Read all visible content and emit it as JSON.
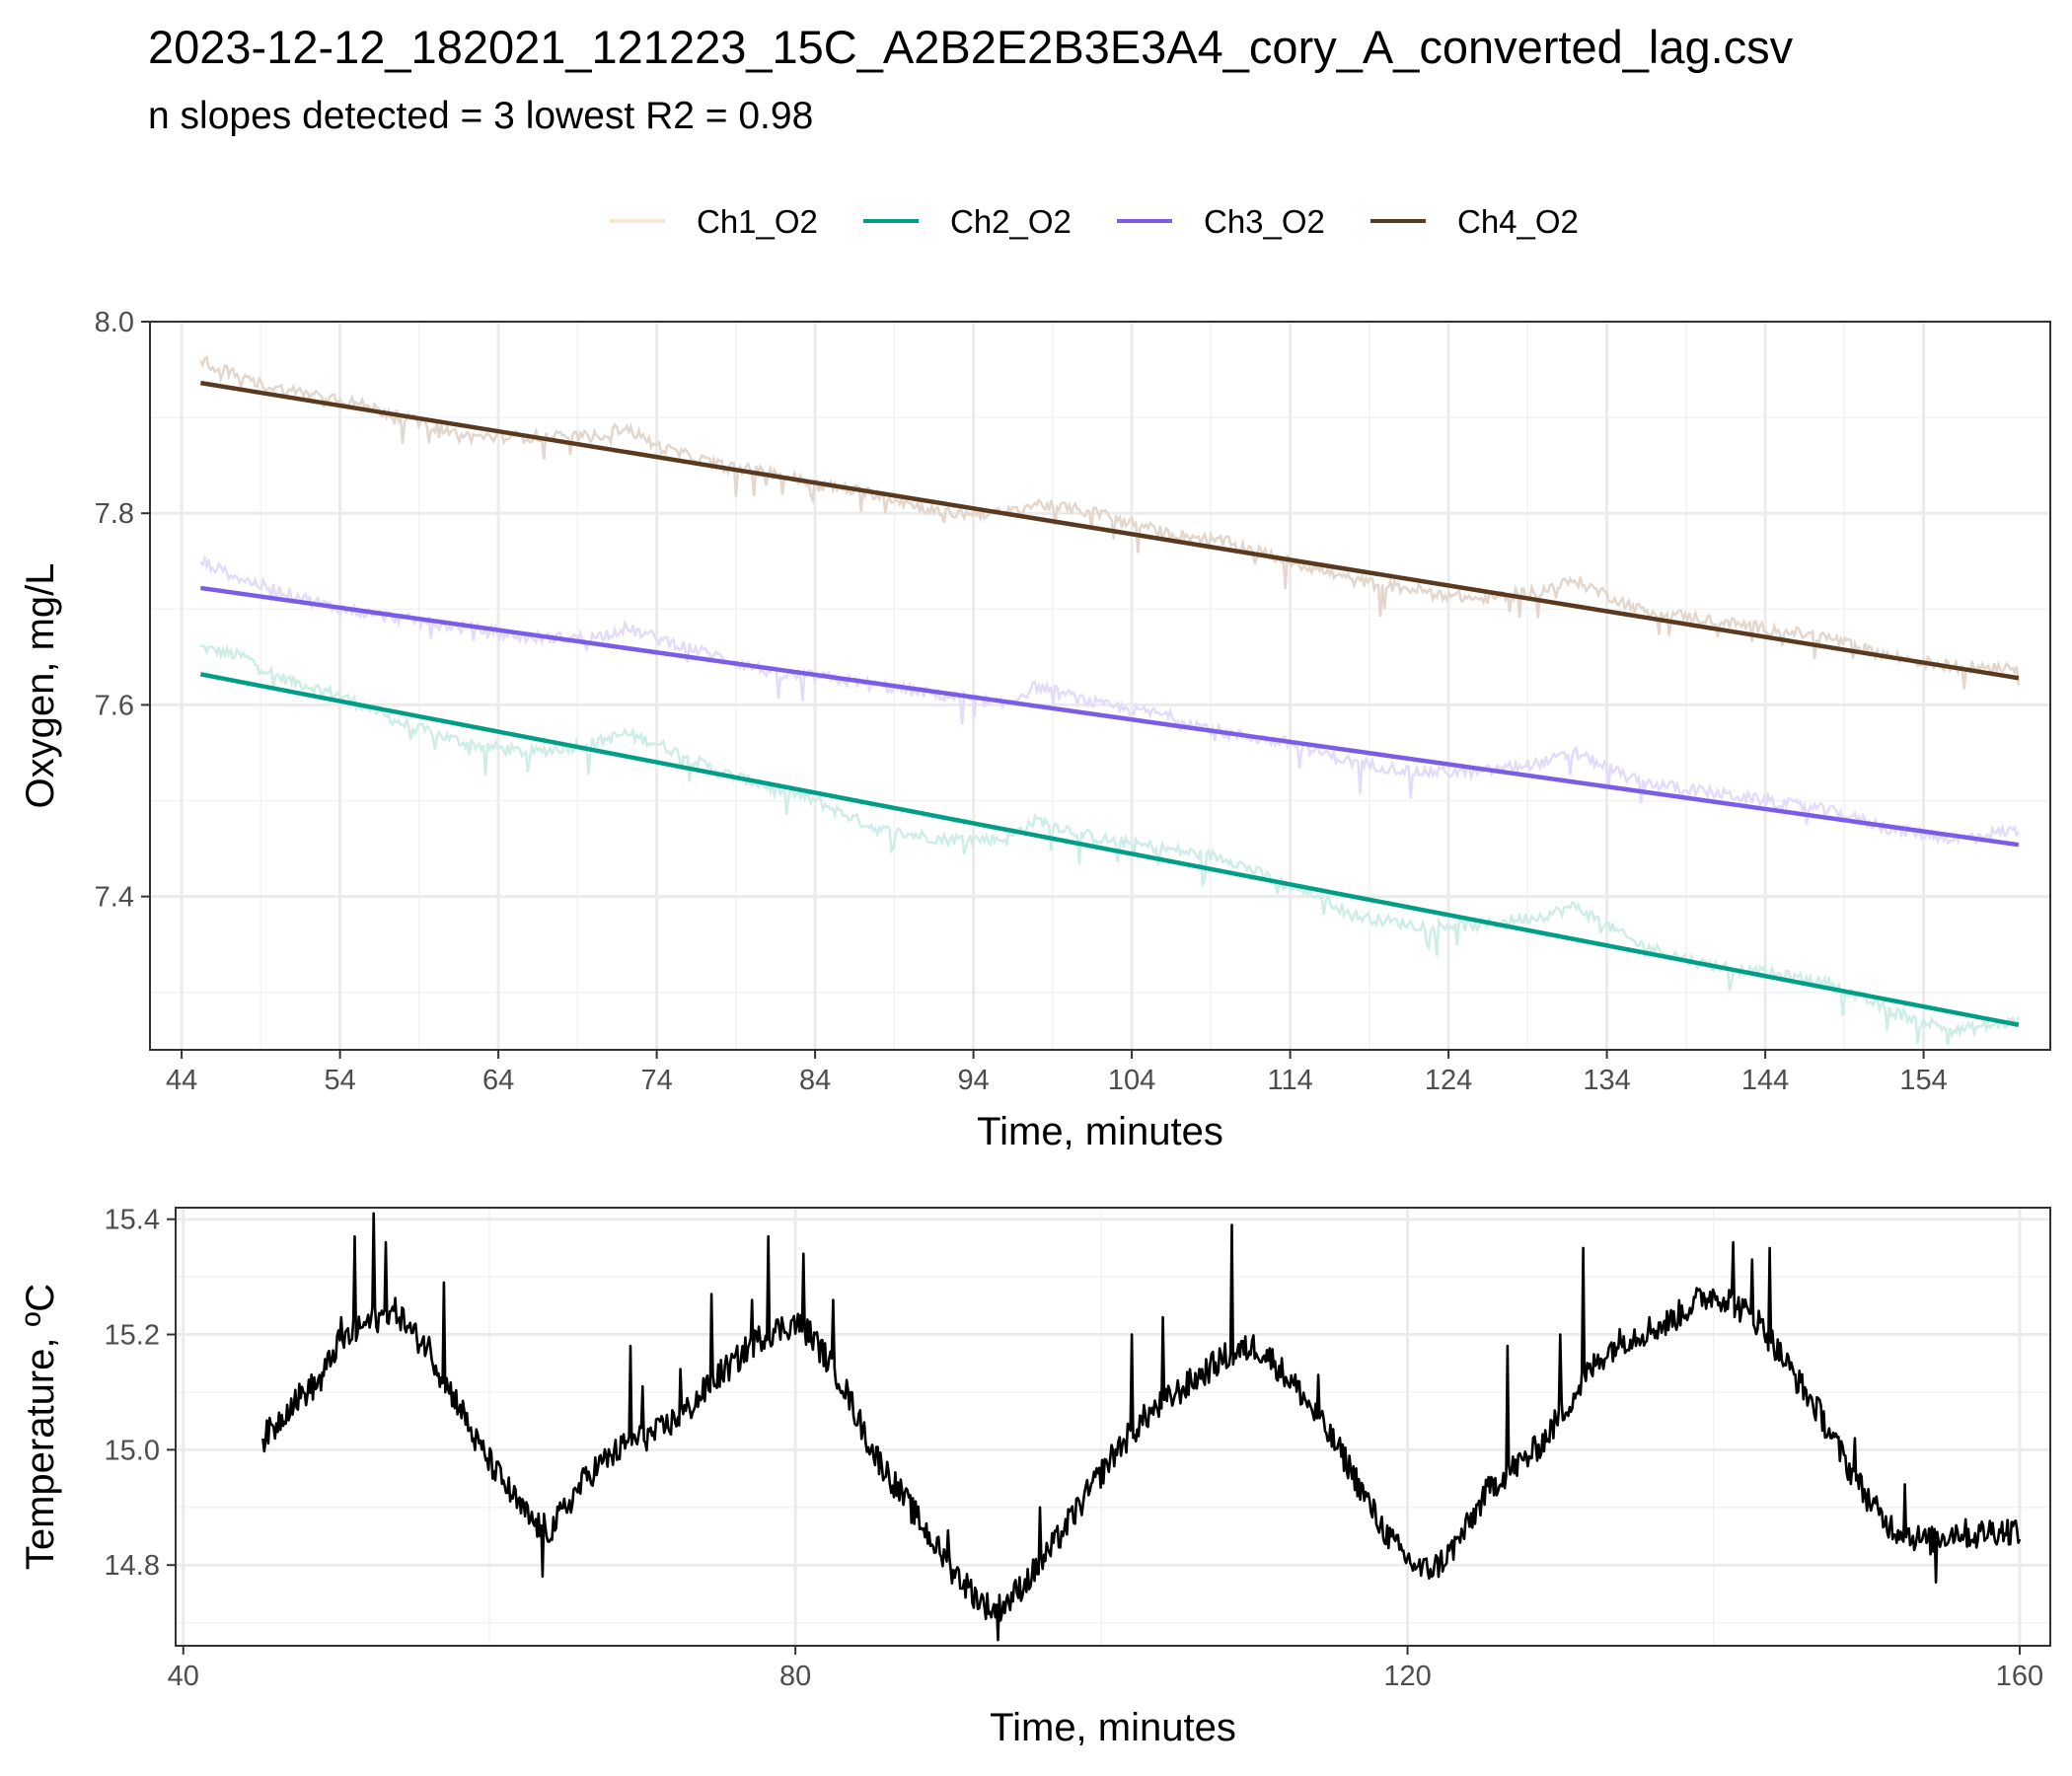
{
  "title": "2023-12-12_182021_121223_15C_A2B2E2B3E3A4_cory_A_converted_lag.csv",
  "subtitle": "n slopes detected = 3  lowest R2 = 0.98",
  "chart_data": [
    {
      "type": "line",
      "xlabel": "Time, minutes",
      "ylabel": "Oxygen, mg/L",
      "xlim": [
        42,
        162
      ],
      "ylim": [
        7.24,
        8.0
      ],
      "x_ticks": [
        44,
        54,
        64,
        74,
        84,
        94,
        104,
        114,
        124,
        134,
        144,
        154
      ],
      "y_ticks": [
        7.4,
        7.6,
        7.8,
        8.0
      ],
      "y_tick_labels": [
        "7.4",
        "7.6",
        "7.8",
        "8.0"
      ],
      "grid": true,
      "legend_position": "top",
      "series": [
        {
          "name": "Ch1_O2",
          "color": "#F5E6D6",
          "x": [],
          "values": []
        },
        {
          "name": "Ch2_O2",
          "color": "#009E86",
          "raw_color": "#CDEDE6",
          "x": [
            45.2,
            48,
            50,
            54,
            58,
            62,
            66,
            70,
            72,
            74,
            78,
            82,
            84,
            88,
            92,
            96,
            98,
            102,
            106,
            110,
            114,
            116,
            118,
            122,
            126,
            130,
            132,
            136,
            140,
            144,
            148,
            152,
            156,
            160
          ],
          "raw": [
            7.66,
            7.65,
            7.63,
            7.61,
            7.58,
            7.56,
            7.55,
            7.56,
            7.57,
            7.56,
            7.53,
            7.51,
            7.5,
            7.47,
            7.46,
            7.46,
            7.48,
            7.46,
            7.45,
            7.44,
            7.41,
            7.4,
            7.38,
            7.37,
            7.37,
            7.38,
            7.39,
            7.35,
            7.33,
            7.32,
            7.31,
            7.28,
            7.26,
            7.27
          ],
          "fit": [
            [
              45.2,
              7.632
            ],
            [
              160,
              7.266
            ]
          ]
        },
        {
          "name": "Ch3_O2",
          "color": "#7B5CE6",
          "raw_color": "#E3DBFA",
          "x": [
            45.2,
            48,
            50,
            54,
            58,
            62,
            66,
            70,
            72,
            74,
            78,
            82,
            84,
            88,
            92,
            96,
            98,
            102,
            106,
            110,
            114,
            116,
            118,
            122,
            126,
            130,
            132,
            136,
            140,
            144,
            148,
            152,
            156,
            160
          ],
          "raw": [
            7.75,
            7.73,
            7.72,
            7.7,
            7.69,
            7.68,
            7.67,
            7.67,
            7.68,
            7.67,
            7.65,
            7.63,
            7.63,
            7.62,
            7.61,
            7.6,
            7.62,
            7.6,
            7.59,
            7.57,
            7.56,
            7.55,
            7.54,
            7.53,
            7.53,
            7.54,
            7.55,
            7.52,
            7.51,
            7.5,
            7.49,
            7.47,
            7.46,
            7.47
          ],
          "fit": [
            [
              45.2,
              7.722
            ],
            [
              160,
              7.454
            ]
          ]
        },
        {
          "name": "Ch4_O2",
          "color": "#5A3A1E",
          "raw_color": "#E3D6CC",
          "x": [
            45.2,
            48,
            50,
            54,
            58,
            62,
            66,
            70,
            72,
            74,
            78,
            82,
            84,
            88,
            92,
            96,
            98,
            102,
            106,
            110,
            114,
            116,
            118,
            122,
            126,
            130,
            132,
            136,
            140,
            144,
            148,
            152,
            156,
            160
          ],
          "raw": [
            7.96,
            7.94,
            7.93,
            7.92,
            7.9,
            7.88,
            7.88,
            7.88,
            7.89,
            7.87,
            7.85,
            7.84,
            7.83,
            7.82,
            7.8,
            7.8,
            7.81,
            7.8,
            7.78,
            7.77,
            7.75,
            7.74,
            7.73,
            7.72,
            7.71,
            7.72,
            7.73,
            7.7,
            7.69,
            7.68,
            7.67,
            7.65,
            7.64,
            7.64
          ],
          "fit": [
            [
              45.2,
              7.936
            ],
            [
              160,
              7.628
            ]
          ]
        }
      ]
    },
    {
      "type": "line",
      "xlabel": "Time, minutes",
      "ylabel": "Temperature, ºC",
      "xlim": [
        39.5,
        162
      ],
      "ylim": [
        14.66,
        15.42
      ],
      "x_ticks": [
        40,
        80,
        120,
        160
      ],
      "y_ticks": [
        14.8,
        15.0,
        15.2,
        15.4
      ],
      "y_tick_labels": [
        "14.8",
        "15.0",
        "15.2",
        "15.4"
      ],
      "grid": true,
      "series": [
        {
          "color": "#000000",
          "x": [
            45.2,
            46,
            47,
            48,
            49,
            50,
            51,
            52,
            53,
            54,
            55,
            56,
            57,
            58,
            59,
            60,
            61,
            62,
            63,
            64,
            65,
            66,
            67,
            68,
            69,
            70,
            71,
            72,
            73,
            74,
            75,
            76,
            77,
            78,
            79,
            80,
            81,
            82,
            83,
            84,
            85,
            86,
            87,
            88,
            89,
            90,
            91,
            92,
            93,
            94,
            95,
            96,
            97,
            98,
            99,
            100,
            101,
            102,
            103,
            104,
            105,
            106,
            107,
            108,
            109,
            110,
            111,
            112,
            113,
            114,
            115,
            116,
            117,
            118,
            119,
            120,
            121,
            122,
            123,
            124,
            125,
            126,
            127,
            128,
            129,
            130,
            131,
            132,
            133,
            134,
            135,
            136,
            137,
            138,
            139,
            140,
            141,
            142,
            143,
            144,
            145,
            146,
            147,
            148,
            149,
            150,
            151,
            152,
            153,
            154,
            155,
            156,
            157,
            158,
            159,
            160
          ],
          "values": [
            15.02,
            15.04,
            15.08,
            15.1,
            15.12,
            15.18,
            15.2,
            15.22,
            15.23,
            15.24,
            15.2,
            15.18,
            15.12,
            15.08,
            15.02,
            14.98,
            14.94,
            14.9,
            14.87,
            14.86,
            14.9,
            14.94,
            14.97,
            14.99,
            15.01,
            15.02,
            15.03,
            15.05,
            15.07,
            15.1,
            15.13,
            15.15,
            15.18,
            15.2,
            15.21,
            15.22,
            15.2,
            15.16,
            15.12,
            15.06,
            15.0,
            14.96,
            14.92,
            14.88,
            14.84,
            14.8,
            14.77,
            14.74,
            14.72,
            14.74,
            14.77,
            14.8,
            14.84,
            14.88,
            14.92,
            14.96,
            15.0,
            15.03,
            15.06,
            15.08,
            15.1,
            15.12,
            15.14,
            15.16,
            15.17,
            15.18,
            15.16,
            15.13,
            15.1,
            15.06,
            15.02,
            14.98,
            14.93,
            14.88,
            14.84,
            14.81,
            14.79,
            14.8,
            14.83,
            14.87,
            14.92,
            14.95,
            14.97,
            14.99,
            15.02,
            15.06,
            15.1,
            15.14,
            15.17,
            15.19,
            15.2,
            15.21,
            15.22,
            15.24,
            15.26,
            15.27,
            15.26,
            15.24,
            15.22,
            15.18,
            15.14,
            15.1,
            15.06,
            15.01,
            14.96,
            14.92,
            14.88,
            14.86,
            14.85,
            14.84,
            14.85,
            14.86,
            14.85,
            14.86,
            14.86,
            14.86
          ],
          "spikes": [
            [
              50.3,
              15.23
            ],
            [
              51.2,
              15.37
            ],
            [
              52.4,
              15.41
            ],
            [
              53.2,
              15.36
            ],
            [
              57,
              15.29
            ],
            [
              63.5,
              14.78
            ],
            [
              66,
              14.96
            ],
            [
              69.2,
              15.18
            ],
            [
              70,
              15.11
            ],
            [
              72.5,
              15.14
            ],
            [
              74.5,
              15.27
            ],
            [
              77.2,
              15.26
            ],
            [
              78.2,
              15.37
            ],
            [
              80.5,
              15.34
            ],
            [
              82.5,
              15.26
            ],
            [
              90,
              14.86
            ],
            [
              93.2,
              14.67
            ],
            [
              96,
              14.9
            ],
            [
              102,
              15.2
            ],
            [
              104,
              15.23
            ],
            [
              108.5,
              15.39
            ],
            [
              114.2,
              15.13
            ],
            [
              122.5,
              14.8
            ],
            [
              126.5,
              15.18
            ],
            [
              130,
              15.2
            ],
            [
              131.5,
              15.35
            ],
            [
              135.8,
              15.23
            ],
            [
              141.3,
              15.36
            ],
            [
              142.5,
              15.33
            ],
            [
              143.7,
              15.35
            ],
            [
              149.2,
              15.02
            ],
            [
              152.5,
              14.94
            ],
            [
              154.5,
              14.77
            ]
          ]
        }
      ]
    }
  ]
}
